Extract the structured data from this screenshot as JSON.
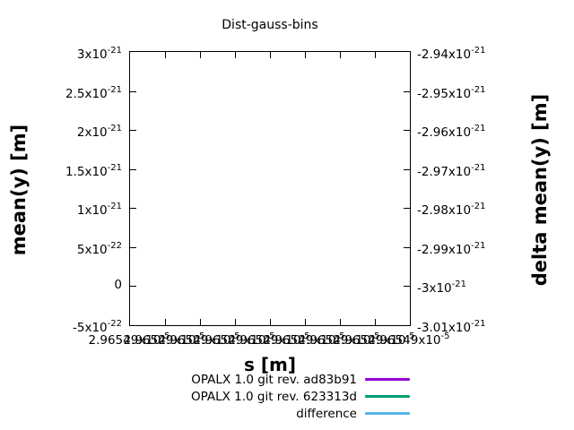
{
  "title": "Dist-gauss-bins",
  "axes": {
    "x": {
      "label": "s [m]",
      "tick_labels": [
        "2.96549x10^-5",
        "2.96549x10^-5",
        "2.96549x10^-5",
        "2.96549x10^-5",
        "2.96549x10^-5",
        "2.96549x10^-5",
        "2.96549x10^-5",
        "2.96549x10^-5",
        "2.96549x10^-5"
      ]
    },
    "y_left": {
      "label": "mean(y) [m]",
      "tick_labels": [
        "3x10^-21",
        "2.5x10^-21",
        "2x10^-21",
        "1.5x10^-21",
        "1x10^-21",
        "5x10^-22",
        "0",
        "-5x10^-22"
      ]
    },
    "y_right": {
      "label": "delta mean(y) [m]",
      "tick_labels": [
        "-2.94x10^-21",
        "-2.95x10^-21",
        "-2.96x10^-21",
        "-2.97x10^-21",
        "-2.98x10^-21",
        "-2.99x10^-21",
        "-3x10^-21",
        "-3.01x10^-21"
      ]
    }
  },
  "legend": [
    {
      "label": "OPALX 1.0 git rev. ad83b91",
      "color": "#9400d3"
    },
    {
      "label": "OPALX 1.0 git rev. 623313d",
      "color": "#009e73"
    },
    {
      "label": "difference",
      "color": "#56b4e9"
    }
  ],
  "chart_data": {
    "type": "line",
    "title": "Dist-gauss-bins",
    "xlabel": "s [m]",
    "ylabel": "mean(y) [m]",
    "y2label": "delta mean(y) [m]",
    "x_tick_labels_displayed": "2.96549x10^-5 (repeated, overlapping, 9 ticks)",
    "ylim": [
      -5e-22,
      3e-21
    ],
    "y_ticks": [
      3e-21,
      2.5e-21,
      2e-21,
      1.5e-21,
      1e-21,
      5e-22,
      0,
      -5e-22
    ],
    "y2lim": [
      -3.01e-21,
      -2.94e-21
    ],
    "y2_ticks": [
      -2.94e-21,
      -2.95e-21,
      -2.96e-21,
      -2.97e-21,
      -2.98e-21,
      -2.99e-21,
      -3e-21,
      -3.01e-21
    ],
    "grid": false,
    "legend_position": "below-plot-right",
    "series": [
      {
        "name": "OPALX 1.0 git rev. ad83b91",
        "color": "#9400d3",
        "values": []
      },
      {
        "name": "OPALX 1.0 git rev. 623313d",
        "color": "#009e73",
        "values": []
      },
      {
        "name": "difference",
        "color": "#56b4e9",
        "values": []
      }
    ],
    "note": "plot area is empty - no data lines visible inside axes"
  }
}
